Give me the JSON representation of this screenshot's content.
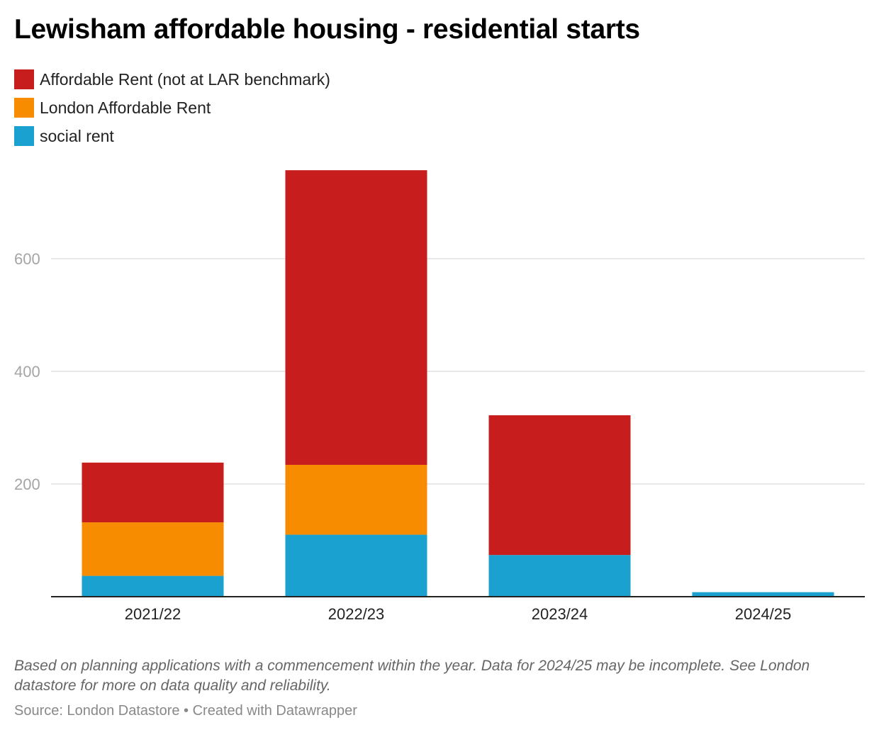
{
  "chart_data": {
    "type": "bar",
    "stacked": true,
    "title": "Lewisham affordable housing - residential starts",
    "categories": [
      "2021/22",
      "2022/23",
      "2023/24",
      "2024/25"
    ],
    "series": [
      {
        "name": "social rent",
        "color": "#1aa1cf",
        "values": [
          37,
          110,
          74,
          8
        ]
      },
      {
        "name": "London Affordable Rent",
        "color": "#f78c00",
        "values": [
          95,
          124,
          0,
          0
        ]
      },
      {
        "name": "Affordable Rent (not at LAR benchmark)",
        "color": "#c71e1d",
        "values": [
          106,
          523,
          248,
          0
        ]
      }
    ],
    "legend_order": [
      2,
      1,
      0
    ],
    "yticks": [
      200,
      400,
      600
    ],
    "ylim": [
      0,
      760
    ],
    "xlabel": "",
    "ylabel": "",
    "grid": true
  },
  "footer": {
    "note": "Based on planning applications with a commencement within the year. Data for 2024/25 may be incomplete. See London datastore for more on data quality and reliability.",
    "source": "Source: London Datastore • Created with Datawrapper"
  }
}
